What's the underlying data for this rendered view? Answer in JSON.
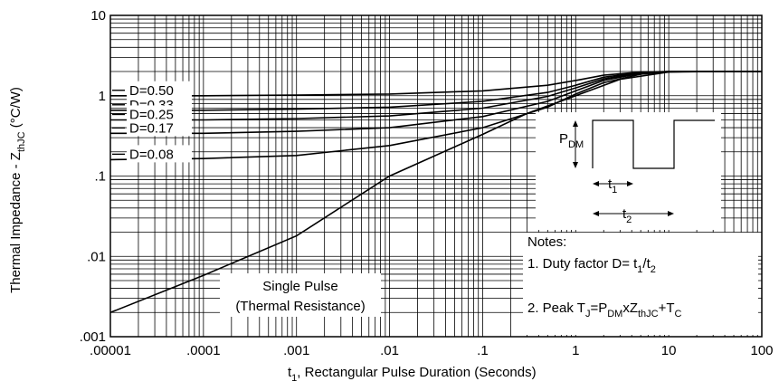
{
  "chart_data": {
    "type": "line",
    "title": "",
    "xlabel": {
      "prefix": "t",
      "sub": "1",
      "suffix": ", Rectangular Pulse Duration (Seconds)"
    },
    "ylabel": {
      "prefix": "Thermal Impedance - Z",
      "sub": "thJC",
      "suffix": " (°C/W)"
    },
    "xscale": "log",
    "yscale": "log",
    "xlim": [
      1e-05,
      100
    ],
    "ylim": [
      0.001,
      10
    ],
    "grid": true,
    "x_tick_labels": [
      ".00001",
      ".0001",
      ".001",
      ".01",
      ".1",
      "1",
      "10",
      "100"
    ],
    "y_tick_labels": [
      ".001",
      ".01",
      ".1",
      "1",
      "10"
    ],
    "series": [
      {
        "name": "D=0.50",
        "x": [
          1e-05,
          0.0001,
          0.001,
          0.01,
          0.1,
          0.5,
          1,
          2,
          5,
          10,
          20,
          100
        ],
        "y": [
          1.0,
          1.0,
          1.02,
          1.05,
          1.15,
          1.35,
          1.55,
          1.8,
          1.97,
          2.0,
          2.0,
          2.0
        ]
      },
      {
        "name": "D=0.33",
        "x": [
          1e-05,
          0.0001,
          0.001,
          0.01,
          0.1,
          0.5,
          1,
          2,
          5,
          10,
          20,
          100
        ],
        "y": [
          0.66,
          0.66,
          0.68,
          0.72,
          0.85,
          1.1,
          1.35,
          1.7,
          1.95,
          2.0,
          2.0,
          2.0
        ]
      },
      {
        "name": "D=0.25",
        "x": [
          1e-05,
          0.0001,
          0.001,
          0.01,
          0.1,
          0.5,
          1,
          2,
          5,
          10,
          20,
          100
        ],
        "y": [
          0.5,
          0.5,
          0.52,
          0.56,
          0.7,
          0.98,
          1.25,
          1.62,
          1.93,
          2.0,
          2.0,
          2.0
        ]
      },
      {
        "name": "D=0.17",
        "x": [
          1e-05,
          0.0001,
          0.001,
          0.01,
          0.1,
          0.5,
          1,
          2,
          5,
          10,
          20,
          100
        ],
        "y": [
          0.34,
          0.34,
          0.36,
          0.4,
          0.55,
          0.85,
          1.15,
          1.55,
          1.9,
          2.0,
          2.0,
          2.0
        ]
      },
      {
        "name": "D=0.08",
        "x": [
          1e-05,
          0.0001,
          0.001,
          0.01,
          0.1,
          0.5,
          1,
          2,
          5,
          10,
          20,
          100
        ],
        "y": [
          0.16,
          0.165,
          0.18,
          0.24,
          0.4,
          0.72,
          1.05,
          1.45,
          1.85,
          1.98,
          2.0,
          2.0
        ]
      },
      {
        "name": "Single Pulse",
        "x": [
          1e-05,
          0.0001,
          0.001,
          0.01,
          0.1,
          0.3,
          1,
          3,
          10,
          30,
          100
        ],
        "y": [
          0.002,
          0.0058,
          0.018,
          0.1,
          0.33,
          0.6,
          1.0,
          1.6,
          1.97,
          2.0,
          2.0
        ]
      }
    ],
    "annotations": {
      "single_pulse": {
        "line1": "Single Pulse",
        "line2": "(Thermal Resistance)"
      },
      "notes_title": "Notes:",
      "note1": {
        "text": "1. Duty factor D= t",
        "s1": "1",
        "mid": "/t",
        "s2": "2"
      },
      "note2": {
        "a": "2. Peak T",
        "sJ": "J",
        "b": "=P",
        "sDM": "DM",
        "c": "xZ",
        "sthJC": "thJC",
        "d": "+T",
        "sC": "C"
      },
      "pdm": {
        "main": "P",
        "sub": "DM"
      },
      "t1": {
        "main": "t",
        "sub": "1"
      },
      "t2": {
        "main": "t",
        "sub": "2"
      }
    }
  }
}
